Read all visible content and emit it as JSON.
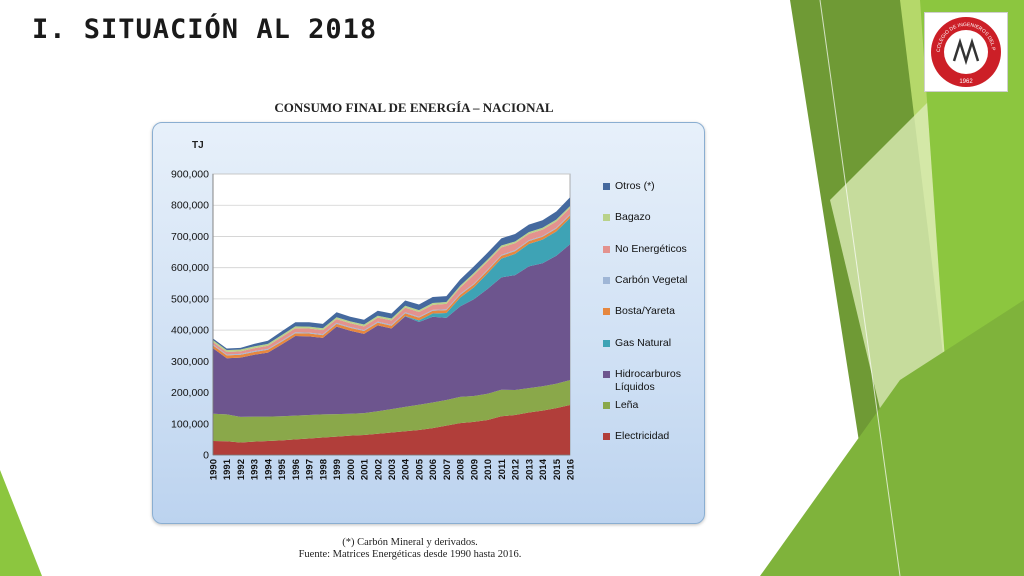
{
  "slide": {
    "title": "I. SITUACIÓN AL 2018",
    "logo": {
      "text_top": "COLEGIO DE INGENIEROS DEL PERU",
      "year": "1962",
      "monogram": "CIP",
      "colors": {
        "ring": "#cc1f27",
        "inner": "#ffffff",
        "mark": "#333333",
        "dot": "#ffffff"
      }
    },
    "colors": {
      "green_dark": "#6f9a35",
      "green_mid": "#8cc63f",
      "green_light": "#b5d86a",
      "green_pale": "#dcecb6"
    }
  },
  "chart_title": "CONSUMO FINAL DE ENERGÍA – NACIONAL",
  "footnote": {
    "line1": "(*) Carbón Mineral y derivados.",
    "line2": "Fuente: Matrices Energéticas desde 1990 hasta 2016."
  },
  "chart_data": {
    "type": "area",
    "stacked": true,
    "title": "CONSUMO FINAL DE ENERGÍA – NACIONAL",
    "ylabel": "TJ",
    "ylim": [
      0,
      900000
    ],
    "yticks": [
      0,
      100000,
      200000,
      300000,
      400000,
      500000,
      600000,
      700000,
      800000,
      900000
    ],
    "ytick_labels": [
      "0",
      "100,000",
      "200,000",
      "300,000",
      "400,000",
      "500,000",
      "600,000",
      "700,000",
      "800,000",
      "900,000"
    ],
    "x": [
      "1990",
      "1991",
      "1992",
      "1993",
      "1994",
      "1995",
      "1996",
      "1997",
      "1998",
      "1999",
      "2000",
      "2001",
      "2002",
      "2003",
      "2004",
      "2005",
      "2006",
      "2007",
      "2008",
      "2009",
      "2010",
      "2011",
      "2012",
      "2013",
      "2014",
      "2015",
      "2016"
    ],
    "grid": true,
    "legend_position": "right",
    "series": [
      {
        "name": "Electricidad",
        "color": "#b13e3a",
        "values": [
          45000,
          44000,
          40000,
          43000,
          45000,
          47000,
          50000,
          53000,
          56000,
          59000,
          62000,
          64000,
          68000,
          72000,
          76000,
          80000,
          86000,
          94000,
          102000,
          106000,
          112000,
          124000,
          128000,
          136000,
          142000,
          150000,
          160000
        ]
      },
      {
        "name": "Leña",
        "color": "#8aa84a",
        "values": [
          87000,
          86000,
          82000,
          80000,
          78000,
          77000,
          76000,
          75000,
          74000,
          72000,
          70000,
          70000,
          72000,
          75000,
          78000,
          81000,
          82000,
          82000,
          84000,
          83000,
          84000,
          85000,
          80000,
          78000,
          78000,
          78000,
          80000
        ]
      },
      {
        "name": "Hidrocarburos Líquidos",
        "color": "#6d558e",
        "values": [
          210000,
          180000,
          190000,
          198000,
          205000,
          230000,
          255000,
          252000,
          245000,
          280000,
          266000,
          254000,
          275000,
          258000,
          290000,
          265000,
          275000,
          263000,
          290000,
          310000,
          336000,
          360000,
          368000,
          390000,
          394000,
          410000,
          435000
        ]
      },
      {
        "name": "Gas Natural",
        "color": "#3ea3b5",
        "values": [
          0,
          0,
          0,
          0,
          0,
          0,
          0,
          0,
          0,
          0,
          0,
          0,
          0,
          0,
          1000,
          5000,
          10000,
          16000,
          28000,
          38000,
          50000,
          60000,
          68000,
          72000,
          76000,
          78000,
          84000
        ]
      },
      {
        "name": "Bosta/Yareta",
        "color": "#e6873f",
        "values": [
          9000,
          9000,
          9000,
          9000,
          9000,
          9000,
          9000,
          9000,
          9000,
          9000,
          9000,
          9000,
          9000,
          9000,
          9000,
          9000,
          9000,
          9000,
          9000,
          9000,
          9000,
          9000,
          9000,
          9000,
          9000,
          9000,
          9000
        ]
      },
      {
        "name": "Carbón Vegetal",
        "color": "#9fb6d6",
        "values": [
          3000,
          3000,
          3000,
          3000,
          3000,
          3000,
          3000,
          3000,
          3000,
          3000,
          3000,
          3000,
          3000,
          3000,
          3000,
          3000,
          3000,
          3000,
          3000,
          3000,
          3000,
          3000,
          3000,
          3000,
          3000,
          3000,
          3000
        ]
      },
      {
        "name": "No Energéticos",
        "color": "#e3928e",
        "values": [
          8000,
          8000,
          8000,
          9000,
          10000,
          12000,
          13000,
          13000,
          13000,
          12000,
          12000,
          12000,
          13000,
          14000,
          15000,
          15000,
          16000,
          17000,
          20000,
          28000,
          26000,
          24000,
          22000,
          20000,
          20000,
          20000,
          20000
        ]
      },
      {
        "name": "Bagazo",
        "color": "#b9d28a",
        "values": [
          6000,
          6000,
          6000,
          6000,
          6000,
          6000,
          6000,
          6000,
          6000,
          6000,
          6000,
          6000,
          6000,
          6000,
          6000,
          6000,
          6000,
          6000,
          6000,
          6000,
          6000,
          6000,
          6000,
          6000,
          6000,
          6000,
          6000
        ]
      },
      {
        "name": "Otros (*)",
        "color": "#45699e",
        "values": [
          5000,
          5000,
          5000,
          8000,
          10000,
          12000,
          13000,
          14000,
          14000,
          16000,
          15000,
          15000,
          16000,
          16000,
          17000,
          18000,
          19000,
          19000,
          20000,
          21000,
          22000,
          23000,
          24000,
          24000,
          24000,
          26000,
          28000
        ]
      }
    ],
    "legend_order": [
      "Otros (*)",
      "Bagazo",
      "No Energéticos",
      "Carbón Vegetal",
      "Bosta/Yareta",
      "Gas Natural",
      "Hidrocarburos Líquidos",
      "Leña",
      "Electricidad"
    ]
  }
}
